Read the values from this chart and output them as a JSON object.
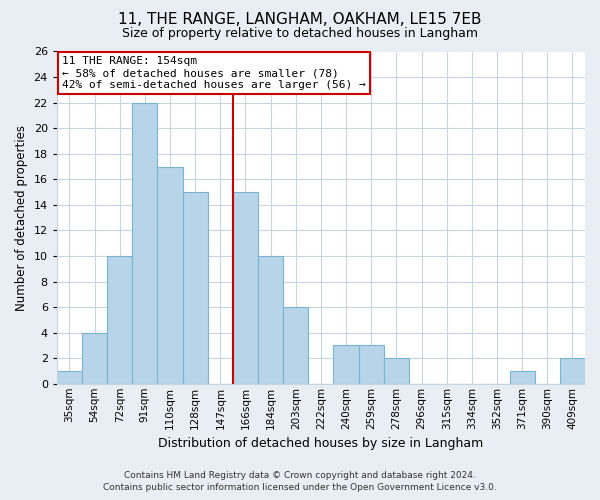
{
  "title": "11, THE RANGE, LANGHAM, OAKHAM, LE15 7EB",
  "subtitle": "Size of property relative to detached houses in Langham",
  "xlabel": "Distribution of detached houses by size in Langham",
  "ylabel": "Number of detached properties",
  "categories": [
    "35sqm",
    "54sqm",
    "72sqm",
    "91sqm",
    "110sqm",
    "128sqm",
    "147sqm",
    "166sqm",
    "184sqm",
    "203sqm",
    "222sqm",
    "240sqm",
    "259sqm",
    "278sqm",
    "296sqm",
    "315sqm",
    "334sqm",
    "352sqm",
    "371sqm",
    "390sqm",
    "409sqm"
  ],
  "values": [
    1,
    4,
    10,
    22,
    17,
    15,
    0,
    15,
    10,
    6,
    0,
    3,
    3,
    2,
    0,
    0,
    0,
    0,
    1,
    0,
    2
  ],
  "bar_color": "#b8d4e8",
  "bar_edge_color": "#7ab4d0",
  "reference_line_color": "#cc0000",
  "ylim": [
    0,
    26
  ],
  "yticks": [
    0,
    2,
    4,
    6,
    8,
    10,
    12,
    14,
    16,
    18,
    20,
    22,
    24,
    26
  ],
  "annotation_title": "11 THE RANGE: 154sqm",
  "annotation_line1": "← 58% of detached houses are smaller (78)",
  "annotation_line2": "42% of semi-detached houses are larger (56) →",
  "footer_line1": "Contains HM Land Registry data © Crown copyright and database right 2024.",
  "footer_line2": "Contains public sector information licensed under the Open Government Licence v3.0.",
  "background_color": "#e8eef4",
  "plot_background_color": "#ffffff",
  "grid_color": "#c8d4e0"
}
